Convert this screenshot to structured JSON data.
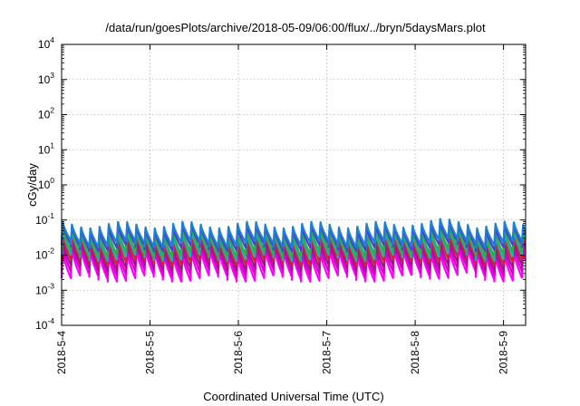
{
  "chart_data": {
    "type": "line",
    "title": "/data/run/goesPlots/archive/2018-05-09/06:00/flux/../bryn/5daysMars.plot",
    "xlabel": "Coordinated Universal Time (UTC)",
    "ylabel": "cGy/day",
    "y_scale": "log",
    "ylim": [
      0.0001,
      10000
    ],
    "y_ticks": [
      {
        "value": 0.0001,
        "base": "10",
        "exp": "-4"
      },
      {
        "value": 0.001,
        "base": "10",
        "exp": "-3"
      },
      {
        "value": 0.01,
        "base": "10",
        "exp": "-2"
      },
      {
        "value": 0.1,
        "base": "10",
        "exp": "-1"
      },
      {
        "value": 1,
        "base": "10",
        "exp": "0"
      },
      {
        "value": 10,
        "base": "10",
        "exp": "1"
      },
      {
        "value": 100,
        "base": "10",
        "exp": "2"
      },
      {
        "value": 1000,
        "base": "10",
        "exp": "3"
      },
      {
        "value": 10000,
        "base": "10",
        "exp": "4"
      }
    ],
    "xlim": [
      "2018-05-04T00:00",
      "2018-05-09T06:00"
    ],
    "x_ticks": [
      {
        "value": "2018-05-04T00:00",
        "label": "2018-5-4"
      },
      {
        "value": "2018-05-05T00:00",
        "label": "2018-5-5"
      },
      {
        "value": "2018-05-06T00:00",
        "label": "2018-5-6"
      },
      {
        "value": "2018-05-07T00:00",
        "label": "2018-5-7"
      },
      {
        "value": "2018-05-08T00:00",
        "label": "2018-5-8"
      },
      {
        "value": "2018-05-09T00:00",
        "label": "2018-5-9"
      }
    ],
    "grid": true,
    "legend": "none",
    "pattern": {
      "period_hours": 2.5,
      "cycles": 51,
      "peak_fraction": 0.12
    },
    "series": [
      {
        "color": "#ff00ff",
        "peak": 0.012,
        "trough": 0.0022
      },
      {
        "color": "#d400c8",
        "peak": 0.017,
        "trough": 0.0032
      },
      {
        "color": "#a0158c",
        "peak": 0.023,
        "trough": 0.0045
      },
      {
        "color": "#c82832",
        "peak": 0.032,
        "trough": 0.0062
      },
      {
        "color": "#18b4a8",
        "peak": 0.042,
        "trough": 0.0085
      },
      {
        "color": "#2caf4a",
        "peak": 0.05,
        "trough": 0.011
      },
      {
        "color": "#4a3fd0",
        "peak": 0.062,
        "trough": 0.016
      },
      {
        "color": "#1f7fd8",
        "peak": 0.072,
        "trough": 0.021
      }
    ]
  }
}
